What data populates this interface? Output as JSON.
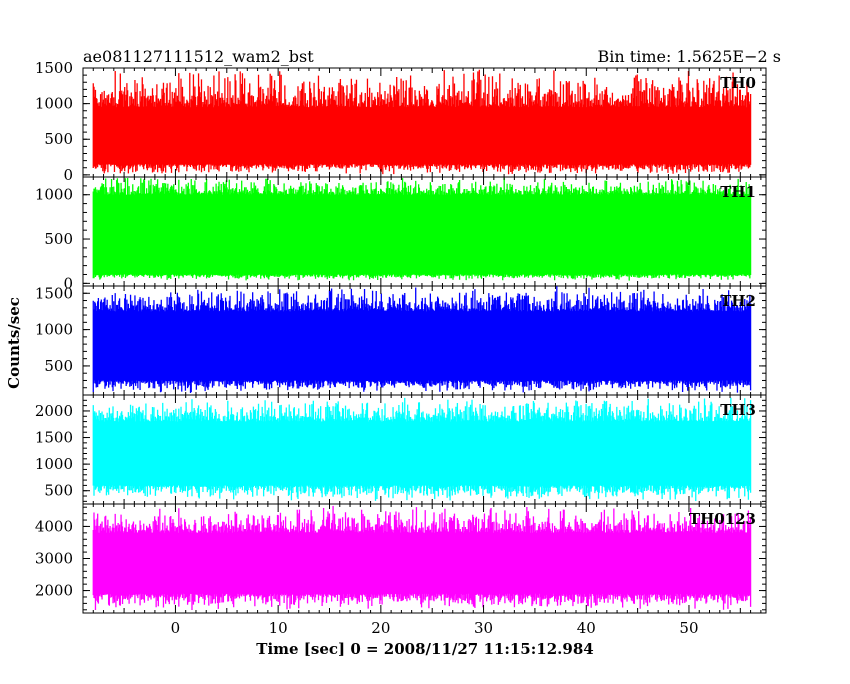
{
  "header": {
    "left": "ae081127111512_wam2_bst",
    "right": "Bin time: 1.5625E−2 s"
  },
  "chart_data": {
    "type": "line",
    "xlabel": "Time [sec] 0 = 2008/11/27 11:15:12.984",
    "ylabel": "Counts/sec",
    "xlim": [
      -9.0,
      57.5
    ],
    "data_x_range": [
      -8.0,
      56.0
    ],
    "x_ticks": [
      0,
      10,
      20,
      30,
      40,
      50
    ],
    "x_tick_labels": [
      "0",
      "10",
      "20",
      "30",
      "40",
      "50"
    ],
    "series": [
      {
        "name": "TH0",
        "color": "#ff0000",
        "ylim": [
          -30,
          1500
        ],
        "y_ticks": [
          0,
          500,
          1000,
          1500
        ],
        "y_tick_labels": [
          "0",
          "500",
          "1000",
          "1500"
        ],
        "typical_range": [
          150,
          950
        ],
        "min": 0,
        "max": 1500,
        "mean": 560
      },
      {
        "name": "TH1",
        "color": "#00ff00",
        "ylim": [
          -30,
          1200
        ],
        "y_ticks": [
          0,
          500,
          1000
        ],
        "y_tick_labels": [
          "0",
          "500",
          "1000"
        ],
        "typical_range": [
          100,
          1000
        ],
        "min": 30,
        "max": 1200,
        "mean": 560
      },
      {
        "name": "TH2",
        "color": "#0000ff",
        "ylim": [
          100,
          1600
        ],
        "y_ticks": [
          500,
          1000,
          1500
        ],
        "y_tick_labels": [
          "500",
          "1000",
          "1500"
        ],
        "typical_range": [
          300,
          1250
        ],
        "min": 120,
        "max": 1600,
        "mean": 760
      },
      {
        "name": "TH3",
        "color": "#00ffff",
        "ylim": [
          250,
          2300
        ],
        "y_ticks": [
          500,
          1000,
          1500,
          2000
        ],
        "y_tick_labels": [
          "500",
          "1000",
          "1500",
          "2000"
        ],
        "typical_range": [
          600,
          1800
        ],
        "min": 300,
        "max": 2250,
        "mean": 1180
      },
      {
        "name": "TH0123",
        "color": "#ff00ff",
        "ylim": [
          1300,
          4700
        ],
        "y_ticks": [
          2000,
          3000,
          4000
        ],
        "y_tick_labels": [
          "2000",
          "3000",
          "4000"
        ],
        "typical_range": [
          1900,
          3800
        ],
        "min": 1350,
        "max": 4650,
        "mean": 2850
      }
    ]
  }
}
